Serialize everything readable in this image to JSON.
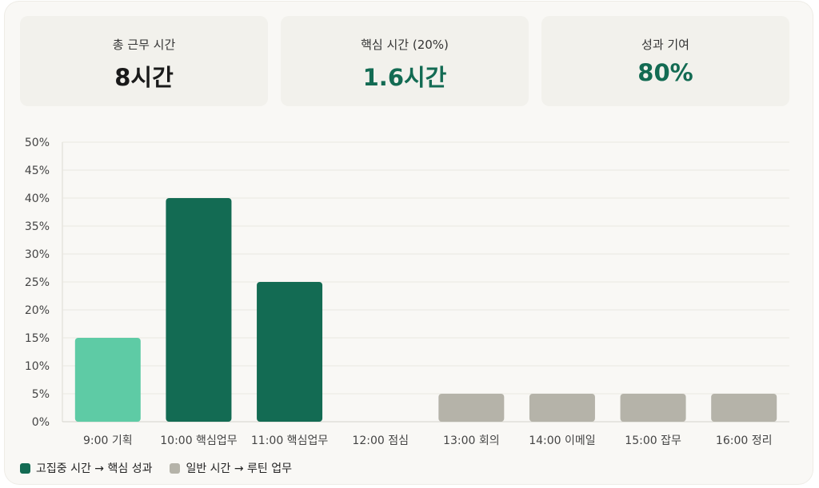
{
  "kpis": [
    {
      "label": "총 근무 시간",
      "value": "8시간",
      "accent": false
    },
    {
      "label": "핵심 시간 (20%)",
      "value": "1.6시간",
      "accent": true
    },
    {
      "label": "성과 기여",
      "value": "80%",
      "accent": true
    }
  ],
  "colors": {
    "focus_light": "#5ecba5",
    "focus_dark": "#136b53",
    "normal": "#b5b3a9",
    "accent_text": "#136b53"
  },
  "chart_data": {
    "type": "bar",
    "categories": [
      "9:00 기획",
      "10:00 핵심업무",
      "11:00 핵심업무",
      "12:00 점심",
      "13:00 회의",
      "14:00 이메일",
      "15:00 잡무",
      "16:00 정리"
    ],
    "values": [
      15,
      40,
      25,
      0,
      5,
      5,
      5,
      5
    ],
    "bar_groups": [
      "focus",
      "focus",
      "focus",
      "none",
      "normal",
      "normal",
      "normal",
      "normal"
    ],
    "bar_colors": [
      "#5ecba5",
      "#136b53",
      "#136b53",
      null,
      "#b5b3a9",
      "#b5b3a9",
      "#b5b3a9",
      "#b5b3a9"
    ],
    "ylim": [
      0,
      50
    ],
    "yticks": [
      0,
      5,
      10,
      15,
      20,
      25,
      30,
      35,
      40,
      45,
      50
    ],
    "ytick_labels": [
      "0%",
      "5%",
      "10%",
      "15%",
      "20%",
      "25%",
      "30%",
      "35%",
      "40%",
      "45%",
      "50%"
    ],
    "grid": true,
    "legend_position": "bottom-left",
    "legend": [
      {
        "label": "고집중 시간 → 핵심 성과",
        "color": "#136b53"
      },
      {
        "label": "일반 시간 → 루틴 업무",
        "color": "#b5b3a9"
      }
    ]
  }
}
